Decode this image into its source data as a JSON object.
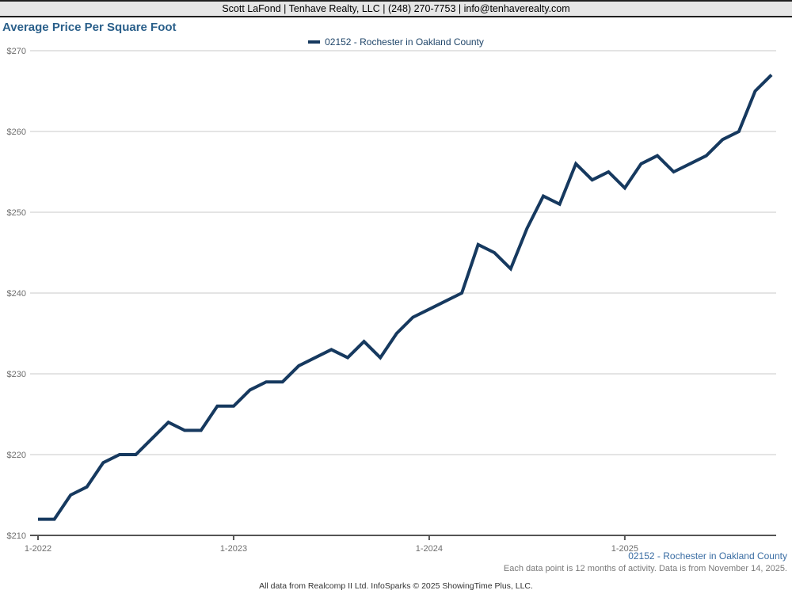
{
  "header": {
    "contact_line": "Scott LaFond | Tenhave Realty, LLC | (248) 270-7753 | info@tenhaverealty.com"
  },
  "title": "Average Price Per Square Foot",
  "legend": {
    "label": "02152 - Rochester in Oakland County"
  },
  "footer": {
    "series_label": "02152 - Rochester in Oakland County",
    "note": "Each data point is 12 months of activity. Data is from November 14, 2025.",
    "attribution": "All data from Realcomp II Ltd. InfoSparks © 2025 ShowingTime Plus, LLC."
  },
  "colors": {
    "line": "#16395f",
    "title_blue": "#2a5f8a",
    "legend_text": "#1f4569",
    "footer_blue": "#3a6da3",
    "footnote_gray": "#7a7a7a",
    "axis_label": "#6e6e6e",
    "axis_line": "#555555",
    "gridline": "#c8c8c8",
    "header_bg": "#e6e6e6"
  },
  "chart_data": {
    "type": "line",
    "title": "Average Price Per Square Foot",
    "ylim": [
      210,
      270
    ],
    "grid": "horizontal",
    "legend_position": "top-center",
    "x": [
      "1-2022",
      "2-2022",
      "3-2022",
      "4-2022",
      "5-2022",
      "6-2022",
      "7-2022",
      "8-2022",
      "9-2022",
      "10-2022",
      "11-2022",
      "12-2022",
      "1-2023",
      "2-2023",
      "3-2023",
      "4-2023",
      "5-2023",
      "6-2023",
      "7-2023",
      "8-2023",
      "9-2023",
      "10-2023",
      "11-2023",
      "12-2023",
      "1-2024",
      "2-2024",
      "3-2024",
      "4-2024",
      "5-2024",
      "6-2024",
      "7-2024",
      "8-2024",
      "9-2024",
      "10-2024",
      "11-2024",
      "12-2024",
      "1-2025",
      "2-2025",
      "3-2025",
      "4-2025",
      "5-2025",
      "6-2025",
      "7-2025",
      "8-2025",
      "9-2025",
      "10-2025"
    ],
    "series": [
      {
        "name": "02152 - Rochester in Oakland County",
        "color": "#16395f",
        "values": [
          212,
          212,
          215,
          216,
          219,
          220,
          220,
          222,
          224,
          223,
          223,
          226,
          226,
          228,
          229,
          229,
          231,
          232,
          233,
          232,
          234,
          232,
          235,
          237,
          238,
          239,
          240,
          246,
          245,
          243,
          248,
          252,
          251,
          256,
          254,
          255,
          253,
          256,
          257,
          255,
          256,
          257,
          259,
          260,
          265,
          267
        ]
      }
    ],
    "x_ticks": [
      {
        "index": 0,
        "label": "1-2022"
      },
      {
        "index": 12,
        "label": "1-2023"
      },
      {
        "index": 24,
        "label": "1-2024"
      },
      {
        "index": 36,
        "label": "1-2025"
      }
    ],
    "y_ticks": [
      {
        "value": 210,
        "label": "$210"
      },
      {
        "value": 220,
        "label": "$220"
      },
      {
        "value": 230,
        "label": "$230"
      },
      {
        "value": 240,
        "label": "$240"
      },
      {
        "value": 250,
        "label": "$250"
      },
      {
        "value": 260,
        "label": "$260"
      },
      {
        "value": 270,
        "label": "$270"
      }
    ]
  }
}
